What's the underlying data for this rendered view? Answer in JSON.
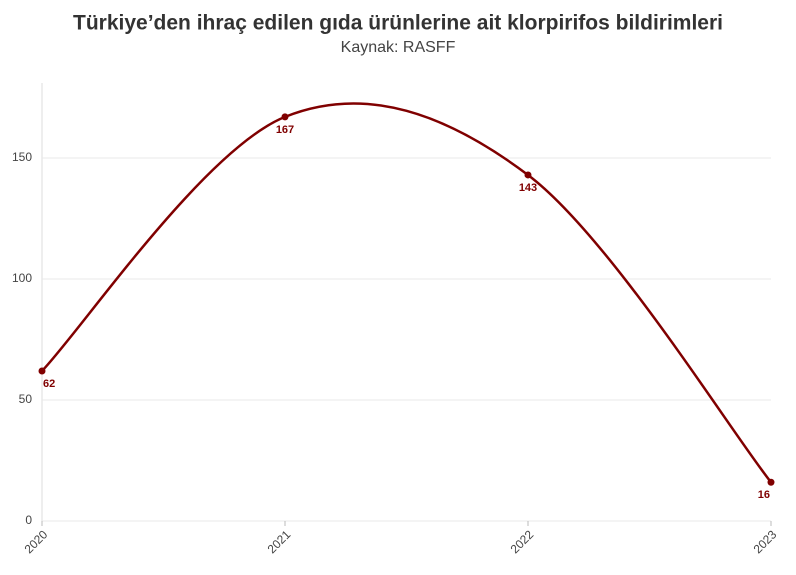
{
  "chart_data": {
    "type": "line",
    "title": "Türkiye’den ihraç edilen gıda ürünlerine ait klorpirifos bildirimleri",
    "subtitle": "Kaynak: RASFF",
    "x": [
      2020,
      2021,
      2022,
      2023
    ],
    "values": [
      62,
      167,
      143,
      16
    ],
    "color": "#800000",
    "xlim": [
      2020,
      2023
    ],
    "xticks": [
      2020,
      2021,
      2022,
      2023
    ],
    "ylim": [
      0,
      181
    ],
    "yticks": [
      0,
      50,
      100,
      150
    ],
    "grid": true,
    "smooth": true
  }
}
